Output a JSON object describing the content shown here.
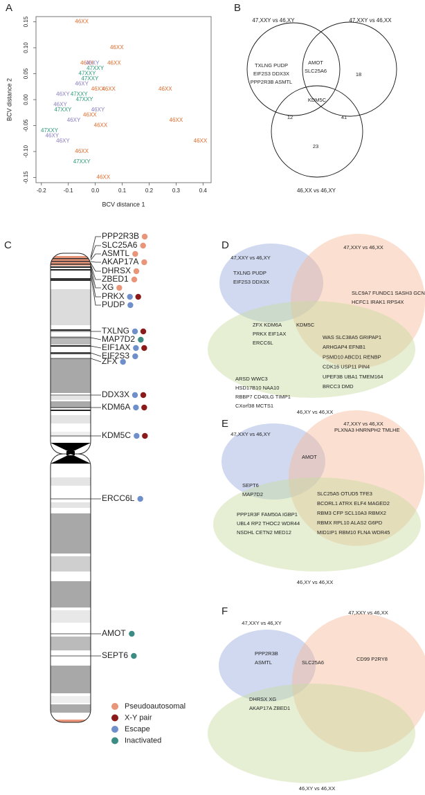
{
  "chart_data": {
    "type": "scatter",
    "panel": "A",
    "xlabel": "BCV distance 1",
    "ylabel": "BCV distance 2",
    "xlim": [
      -0.22,
      0.43
    ],
    "ylim": [
      -0.16,
      0.16
    ],
    "xticks": [
      -0.2,
      -0.1,
      {
        "value": 0,
        "label": "0.0"
      },
      0.1,
      0.2,
      0.3,
      0.4
    ],
    "yticks": [
      0.15,
      {
        "value": 0.1,
        "label": "0.10"
      },
      0.05,
      {
        "value": 0,
        "label": "0.00"
      },
      -0.05,
      {
        "value": -0.1,
        "label": "-0.10"
      },
      -0.15
    ],
    "series": [
      {
        "name": "46XX",
        "color": "#e06c2c",
        "x": [
          -0.05,
          0.08,
          -0.03,
          0.07,
          0.01,
          0.05,
          -0.02,
          0.02,
          0.26,
          0.3,
          0.39,
          -0.05,
          0.03
        ],
        "y": [
          0.15,
          0.1,
          0.07,
          0.07,
          0.02,
          0.02,
          -0.03,
          -0.05,
          0.02,
          -0.04,
          -0.08,
          -0.1,
          -0.15
        ]
      },
      {
        "name": "46XY",
        "color": "#8a7dbf",
        "x": [
          -0.01,
          -0.05,
          -0.12,
          -0.13,
          0.01,
          -0.08,
          -0.16,
          -0.12
        ],
        "y": [
          0.07,
          0.03,
          0.01,
          -0.01,
          -0.02,
          -0.04,
          -0.07,
          -0.08
        ]
      },
      {
        "name": "47XXY",
        "color": "#2a9a78",
        "x": [
          0.0,
          -0.03,
          -0.02,
          -0.06,
          -0.04,
          -0.12,
          -0.17,
          -0.05
        ],
        "y": [
          0.06,
          0.05,
          0.04,
          0.01,
          0.0,
          -0.02,
          -0.06,
          -0.12
        ]
      }
    ]
  },
  "venn_b": {
    "label": "B",
    "sets": [
      "47,XXY vs 46,XY",
      "47,XXY vs 46,XX",
      "46,XX vs 46,XY"
    ],
    "regions": [
      [
        "TXLNG PUDP",
        "EIF2S3 DDX3X",
        "PPP2R3B ASMTL"
      ],
      [
        "AMOT",
        "SLC25A6"
      ],
      [
        18
      ],
      [
        "KDM5C"
      ],
      [
        12
      ],
      [
        41
      ],
      [
        23
      ]
    ]
  },
  "ideogram": {
    "label": "C",
    "genes": [
      {
        "name": "PPP2R3B",
        "dots": [
          "Pseudoautosomal"
        ]
      },
      {
        "name": "SLC25A6",
        "dots": [
          "Pseudoautosomal"
        ]
      },
      {
        "name": "ASMTL",
        "dots": [
          "Pseudoautosomal"
        ]
      },
      {
        "name": "AKAP17A",
        "dots": [
          "Pseudoautosomal"
        ]
      },
      {
        "name": "DHRSX",
        "dots": [
          "Pseudoautosomal"
        ]
      },
      {
        "name": "ZBED1",
        "dots": [
          "Pseudoautosomal"
        ]
      },
      {
        "name": "XG",
        "dots": [
          "Pseudoautosomal"
        ]
      },
      {
        "name": "PRKX",
        "dots": [
          "Escape",
          "X-Y pair"
        ]
      },
      {
        "name": "PUDP",
        "dots": [
          "Escape"
        ]
      },
      {
        "name": "TXLNG",
        "dots": [
          "Escape",
          "X-Y pair"
        ]
      },
      {
        "name": "MAP7D2",
        "dots": [
          "Inactivated"
        ]
      },
      {
        "name": "EIF1AX",
        "dots": [
          "Escape",
          "X-Y pair"
        ]
      },
      {
        "name": "EIF2S3",
        "dots": [
          "Escape"
        ]
      },
      {
        "name": "ZFX",
        "dots": [
          "Escape"
        ]
      },
      {
        "name": "DDX3X",
        "dots": [
          "Escape",
          "X-Y pair"
        ]
      },
      {
        "name": "KDM6A",
        "dots": [
          "Escape",
          "X-Y pair"
        ]
      },
      {
        "name": "KDM5C",
        "dots": [
          "Escape",
          "X-Y pair"
        ]
      },
      {
        "name": "ERCC6L",
        "dots": [
          "Escape"
        ]
      },
      {
        "name": "AMOT",
        "dots": [
          "Inactivated"
        ]
      },
      {
        "name": "SEPT6",
        "dots": [
          "Inactivated"
        ]
      }
    ],
    "legend": [
      {
        "name": "Pseudoautosomal",
        "color": "#e8957a"
      },
      {
        "name": "X-Y pair",
        "color": "#8b1a1a"
      },
      {
        "name": "Escape",
        "color": "#6f8fcb"
      },
      {
        "name": "Inactivated",
        "color": "#3c8c84"
      }
    ]
  },
  "venn_panels": [
    {
      "label": "D",
      "sets": [
        "47,XXY vs 46,XY",
        "47,XXY vs 46,XX",
        "46,XY vs 46,XX"
      ],
      "regions": [
        [
          "TXLNG PUDP",
          "EIF2S3 DDX3X"
        ],
        [
          "SLC9A7 FUNDC1 SASH3 GCNA",
          "HCFC1 IRAK1 RPS4X"
        ],
        [
          "ZFX KDM6A",
          "PRKX EIF1AX",
          "ERCC6L"
        ],
        [
          "KDM5C"
        ],
        [
          "WAS SLC38A5 GRIPAP1",
          "ARHGAP4 EFNB1",
          "PSMD10 ABCD1 RENBP",
          "CDK16 USP11 PIN4",
          "UPEF3B UBA1 TMEM164",
          "BRCC3 DMD"
        ],
        [
          "ARSD WWC3",
          "HSD17B10 NAA10",
          "RBBP7 CD40LG TIMP1",
          "CXorf38 MCTS1"
        ]
      ]
    },
    {
      "label": "E",
      "sets": [
        "47,XXY vs 46,XY",
        "47,XXY vs 46,XX",
        "46,XY vs 46,XX"
      ],
      "regions": [
        [
          "PLXNA3 HNRNPH2 TMLHE"
        ],
        [
          "AMOT"
        ],
        [
          "SEPT6",
          "MAP7D2"
        ],
        [
          "SLC25A5 OTUD5 TFE3",
          "BCORL1 ATRX ELF4 MAGED2",
          "RBM3 CFP SCL10A3 RBMX2",
          "RBMX RPL10 ALAS2 G6PD",
          "MID1IP1 RBM10 FLNA WDR45"
        ],
        [
          "PPP1R3F FAM50A IGBP1",
          "UBL4 RP2 THOC2 WDR44",
          "NSDHL CETN2 MED12"
        ]
      ]
    },
    {
      "label": "F",
      "sets": [
        "47,XXY vs 46,XY",
        "47,XXY vs 46,XX",
        "46,XY vs 46,XX"
      ],
      "regions": [
        [
          "PPP2R3B",
          "ASMTL"
        ],
        [
          "SLC25A6"
        ],
        [
          "CD99 P2RY8"
        ],
        [
          "DHRSX XG",
          "AKAP17A ZBED1"
        ]
      ]
    }
  ]
}
